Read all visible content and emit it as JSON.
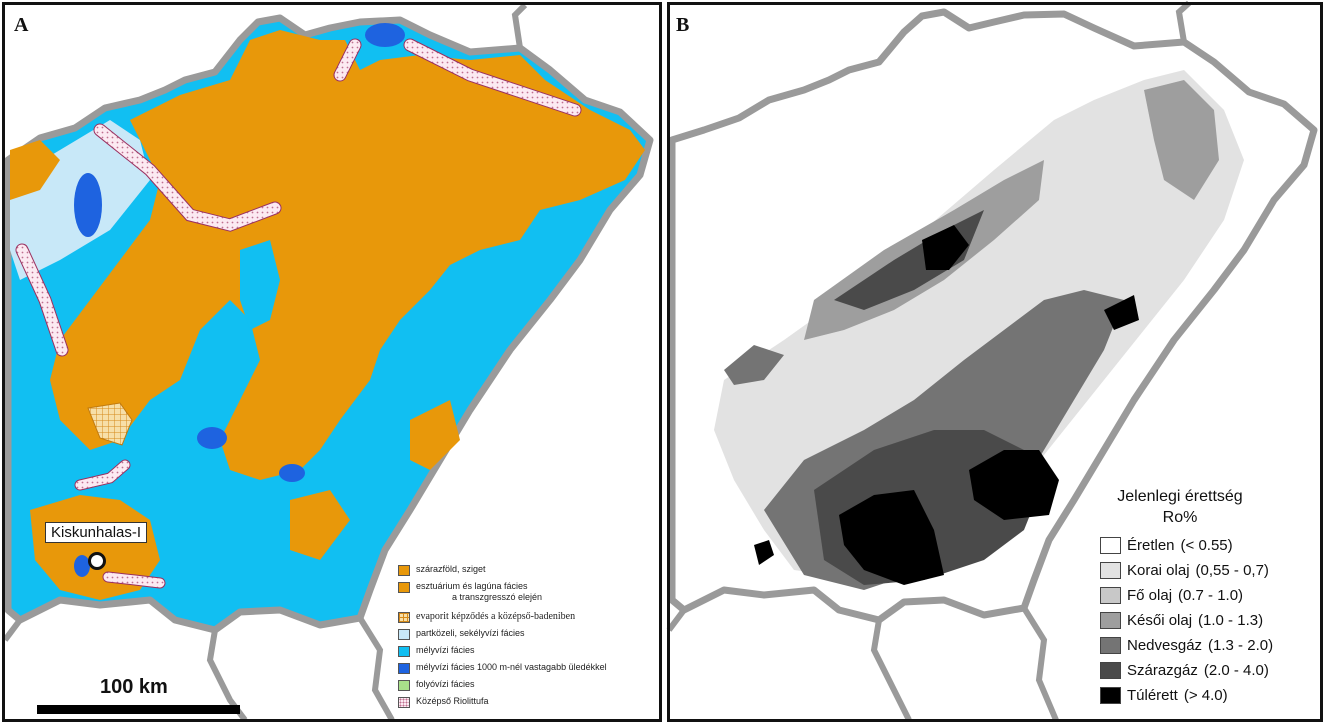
{
  "panel_a": {
    "letter": "A",
    "well_label": "Kiskunhalas-I",
    "scale_label": "100 km",
    "legend": [
      {
        "label": "szárazföld, sziget",
        "sub": "",
        "color": "#E8980A",
        "pattern": "solid"
      },
      {
        "label": "esztuárium és lagúna fácies",
        "sub": "a transzgresszó elején",
        "color": "#E8980A",
        "pattern": "solid"
      },
      {
        "label": "evaporit képződés a középső-badeniben",
        "sub": "",
        "color": "#F5DCA8",
        "pattern": "grid"
      },
      {
        "label": "partközeli, sekélyvízi fácies",
        "sub": "",
        "color": "#C8E8F8",
        "pattern": "solid"
      },
      {
        "label": "mélyvízi fácies",
        "sub": "",
        "color": "#11BFF2",
        "pattern": "solid"
      },
      {
        "label": "mélyvízi fácies 1000 m-nél vastagabb üledékkel",
        "sub": "",
        "color": "#1E63E0",
        "pattern": "solid"
      },
      {
        "label": "folyóvízi fácies",
        "sub": "",
        "color": "#A8E08A",
        "pattern": "solid"
      },
      {
        "label": "Középső Riolittufa",
        "sub": "",
        "color": "#FCE8F0",
        "pattern": "dots"
      }
    ]
  },
  "panel_b": {
    "letter": "B",
    "legend_title": "Jelenlegi érettség",
    "legend_subtitle": "Ro%",
    "legend": [
      {
        "name": "Éretlen",
        "range": "(< 0.55)",
        "color": "#FFFFFF"
      },
      {
        "name": "Korai olaj",
        "range": "(0,55 - 0,7)",
        "color": "#E2E2E2"
      },
      {
        "name": "Fő olaj",
        "range": "(0.7 - 1.0)",
        "color": "#C8C8C8"
      },
      {
        "name": "Késői olaj",
        "range": "(1.0 - 1.3)",
        "color": "#9E9E9E"
      },
      {
        "name": "Nedvesgáz",
        "range": "(1.3 - 2.0)",
        "color": "#747474"
      },
      {
        "name": "Szárazgáz",
        "range": "(2.0 - 4.0)",
        "color": "#4A4A4A"
      },
      {
        "name": "Túlérett",
        "range": "(> 4.0)",
        "color": "#000000"
      }
    ]
  }
}
